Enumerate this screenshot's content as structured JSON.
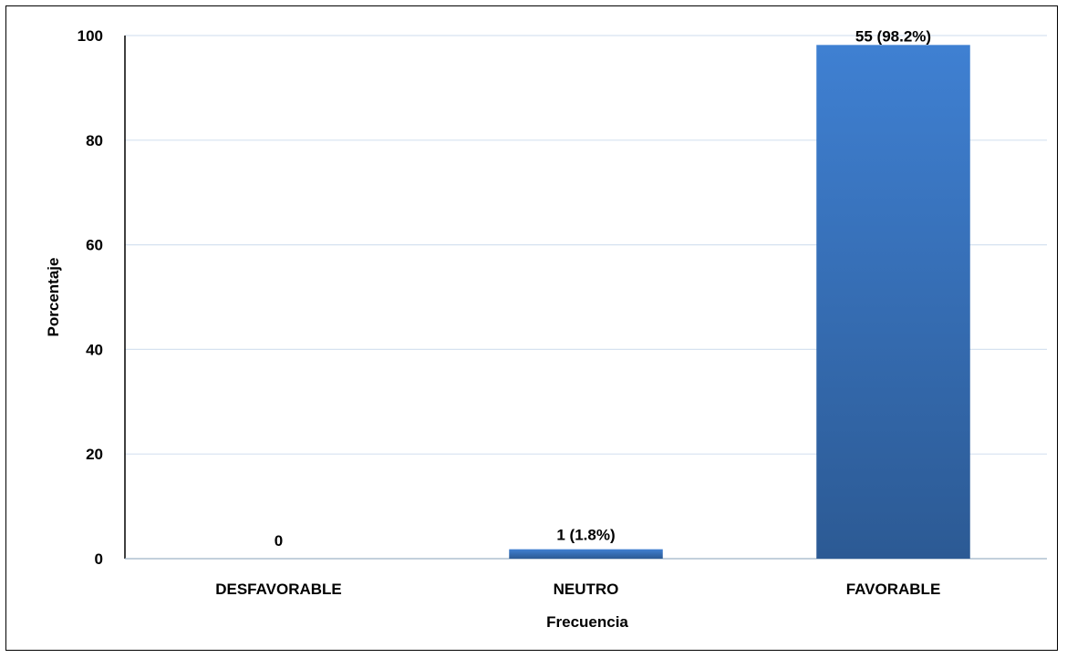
{
  "chart_data": {
    "type": "bar",
    "categories": [
      "DESFAVORABLE",
      "NEUTRO",
      "FAVORABLE"
    ],
    "values": [
      0,
      1.8,
      98.2
    ],
    "data_labels": [
      "0",
      "1 (1.8%)",
      "55 (98.2%)"
    ],
    "xlabel": "Frecuencia",
    "ylabel": "Porcentaje",
    "ylim": [
      0,
      100
    ],
    "yticks": [
      "0",
      "20",
      "40",
      "60",
      "80",
      "100"
    ],
    "grid": true,
    "legend": "none",
    "colors": {
      "bar_top": "#3f80d2",
      "bar_bottom": "#2c5a94",
      "grid": "#d6e2f0",
      "axis": "#9fb3c8"
    }
  }
}
